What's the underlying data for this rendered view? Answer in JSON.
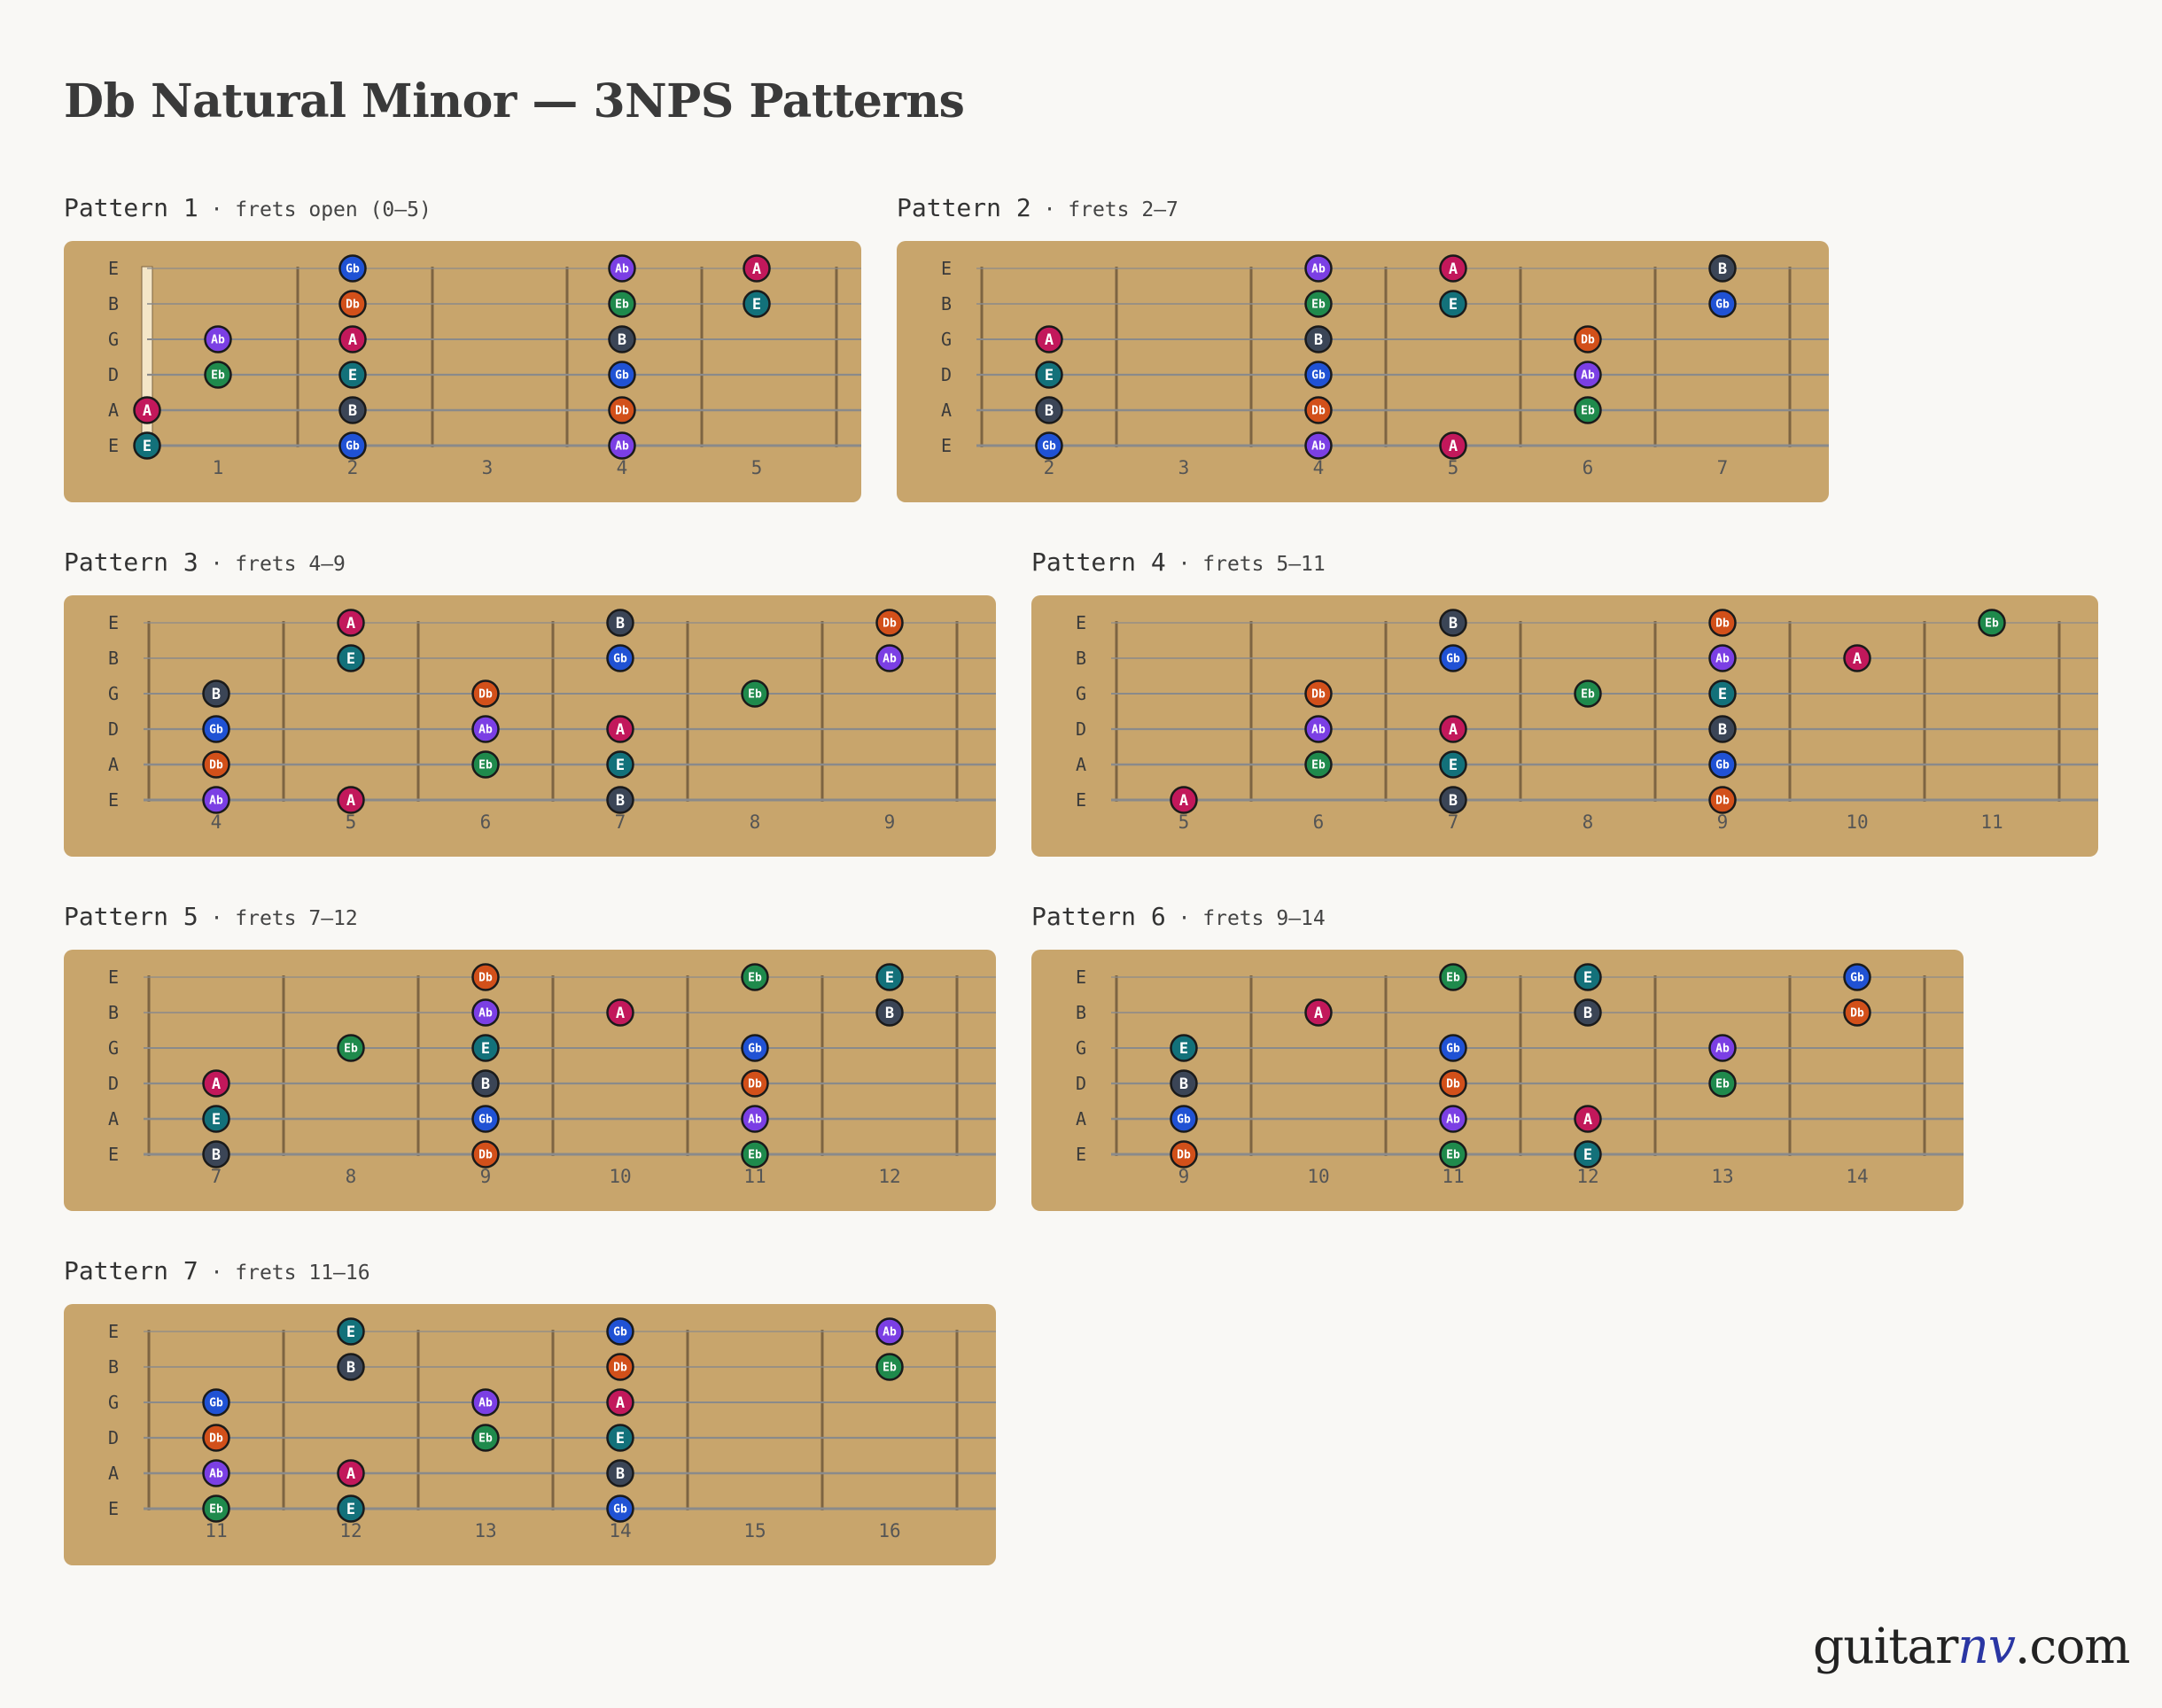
{
  "title": "Db Natural Minor — 3NPS Patterns",
  "brand": {
    "part1": "guitar",
    "part2": "nv",
    "part3": ".com"
  },
  "strings": [
    "E",
    "B",
    "G",
    "D",
    "A",
    "E"
  ],
  "colors": {
    "board": "#c8a56c",
    "fret": "#7d6442",
    "string": "#8a8a8a",
    "nut": "#f4e6c8",
    "note_outline": "#1a1a1a",
    "notes": {
      "A": "#c2185b",
      "Ab": "#7b3fe4",
      "B": "#3b4556",
      "Db": "#d2501a",
      "E": "#13717a",
      "Eb": "#1f8a4c",
      "Gb": "#2052d4"
    }
  },
  "patterns": [
    {
      "name": "Pattern 1",
      "range": "· frets open (0–5)",
      "open": true,
      "fret_labels": [
        "1",
        "2",
        "3",
        "4",
        "5"
      ],
      "notes": [
        {
          "s": 0,
          "f": 2,
          "n": "Gb"
        },
        {
          "s": 0,
          "f": 4,
          "n": "Ab"
        },
        {
          "s": 0,
          "f": 5,
          "n": "A"
        },
        {
          "s": 1,
          "f": 2,
          "n": "Db"
        },
        {
          "s": 1,
          "f": 4,
          "n": "Eb"
        },
        {
          "s": 1,
          "f": 5,
          "n": "E"
        },
        {
          "s": 2,
          "f": 1,
          "n": "Ab"
        },
        {
          "s": 2,
          "f": 2,
          "n": "A"
        },
        {
          "s": 2,
          "f": 4,
          "n": "B"
        },
        {
          "s": 3,
          "f": 1,
          "n": "Eb"
        },
        {
          "s": 3,
          "f": 2,
          "n": "E"
        },
        {
          "s": 3,
          "f": 4,
          "n": "Gb"
        },
        {
          "s": 4,
          "f": 0,
          "n": "A"
        },
        {
          "s": 4,
          "f": 2,
          "n": "B"
        },
        {
          "s": 4,
          "f": 4,
          "n": "Db"
        },
        {
          "s": 5,
          "f": 0,
          "n": "E"
        },
        {
          "s": 5,
          "f": 2,
          "n": "Gb"
        },
        {
          "s": 5,
          "f": 4,
          "n": "Ab"
        }
      ]
    },
    {
      "name": "Pattern 2",
      "range": "· frets 2–7",
      "open": false,
      "fret_labels": [
        "2",
        "3",
        "4",
        "5",
        "6",
        "7"
      ],
      "notes": [
        {
          "s": 0,
          "f": 4,
          "n": "Ab"
        },
        {
          "s": 0,
          "f": 5,
          "n": "A"
        },
        {
          "s": 0,
          "f": 7,
          "n": "B"
        },
        {
          "s": 1,
          "f": 4,
          "n": "Eb"
        },
        {
          "s": 1,
          "f": 5,
          "n": "E"
        },
        {
          "s": 1,
          "f": 7,
          "n": "Gb"
        },
        {
          "s": 2,
          "f": 2,
          "n": "A"
        },
        {
          "s": 2,
          "f": 4,
          "n": "B"
        },
        {
          "s": 2,
          "f": 6,
          "n": "Db"
        },
        {
          "s": 3,
          "f": 2,
          "n": "E"
        },
        {
          "s": 3,
          "f": 4,
          "n": "Gb"
        },
        {
          "s": 3,
          "f": 6,
          "n": "Ab"
        },
        {
          "s": 4,
          "f": 2,
          "n": "B"
        },
        {
          "s": 4,
          "f": 4,
          "n": "Db"
        },
        {
          "s": 4,
          "f": 6,
          "n": "Eb"
        },
        {
          "s": 5,
          "f": 2,
          "n": "Gb"
        },
        {
          "s": 5,
          "f": 4,
          "n": "Ab"
        },
        {
          "s": 5,
          "f": 5,
          "n": "A"
        }
      ]
    },
    {
      "name": "Pattern 3",
      "range": "· frets 4–9",
      "open": false,
      "fret_labels": [
        "4",
        "5",
        "6",
        "7",
        "8",
        "9"
      ],
      "notes": [
        {
          "s": 0,
          "f": 5,
          "n": "A"
        },
        {
          "s": 0,
          "f": 7,
          "n": "B"
        },
        {
          "s": 0,
          "f": 9,
          "n": "Db"
        },
        {
          "s": 1,
          "f": 5,
          "n": "E"
        },
        {
          "s": 1,
          "f": 7,
          "n": "Gb"
        },
        {
          "s": 1,
          "f": 9,
          "n": "Ab"
        },
        {
          "s": 2,
          "f": 4,
          "n": "B"
        },
        {
          "s": 2,
          "f": 6,
          "n": "Db"
        },
        {
          "s": 2,
          "f": 8,
          "n": "Eb"
        },
        {
          "s": 3,
          "f": 4,
          "n": "Gb"
        },
        {
          "s": 3,
          "f": 6,
          "n": "Ab"
        },
        {
          "s": 3,
          "f": 7,
          "n": "A"
        },
        {
          "s": 4,
          "f": 4,
          "n": "Db"
        },
        {
          "s": 4,
          "f": 6,
          "n": "Eb"
        },
        {
          "s": 4,
          "f": 7,
          "n": "E"
        },
        {
          "s": 5,
          "f": 4,
          "n": "Ab"
        },
        {
          "s": 5,
          "f": 5,
          "n": "A"
        },
        {
          "s": 5,
          "f": 7,
          "n": "B"
        }
      ]
    },
    {
      "name": "Pattern 4",
      "range": "· frets 5–11",
      "open": false,
      "fret_labels": [
        "5",
        "6",
        "7",
        "8",
        "9",
        "10",
        "11"
      ],
      "notes": [
        {
          "s": 0,
          "f": 7,
          "n": "B"
        },
        {
          "s": 0,
          "f": 9,
          "n": "Db"
        },
        {
          "s": 0,
          "f": 11,
          "n": "Eb"
        },
        {
          "s": 1,
          "f": 7,
          "n": "Gb"
        },
        {
          "s": 1,
          "f": 9,
          "n": "Ab"
        },
        {
          "s": 1,
          "f": 10,
          "n": "A"
        },
        {
          "s": 2,
          "f": 6,
          "n": "Db"
        },
        {
          "s": 2,
          "f": 8,
          "n": "Eb"
        },
        {
          "s": 2,
          "f": 9,
          "n": "E"
        },
        {
          "s": 3,
          "f": 6,
          "n": "Ab"
        },
        {
          "s": 3,
          "f": 7,
          "n": "A"
        },
        {
          "s": 3,
          "f": 9,
          "n": "B"
        },
        {
          "s": 4,
          "f": 6,
          "n": "Eb"
        },
        {
          "s": 4,
          "f": 7,
          "n": "E"
        },
        {
          "s": 4,
          "f": 9,
          "n": "Gb"
        },
        {
          "s": 5,
          "f": 5,
          "n": "A"
        },
        {
          "s": 5,
          "f": 7,
          "n": "B"
        },
        {
          "s": 5,
          "f": 9,
          "n": "Db"
        }
      ]
    },
    {
      "name": "Pattern 5",
      "range": "· frets 7–12",
      "open": false,
      "fret_labels": [
        "7",
        "8",
        "9",
        "10",
        "11",
        "12"
      ],
      "notes": [
        {
          "s": 0,
          "f": 9,
          "n": "Db"
        },
        {
          "s": 0,
          "f": 11,
          "n": "Eb"
        },
        {
          "s": 0,
          "f": 12,
          "n": "E"
        },
        {
          "s": 1,
          "f": 9,
          "n": "Ab"
        },
        {
          "s": 1,
          "f": 10,
          "n": "A"
        },
        {
          "s": 1,
          "f": 12,
          "n": "B"
        },
        {
          "s": 2,
          "f": 8,
          "n": "Eb"
        },
        {
          "s": 2,
          "f": 9,
          "n": "E"
        },
        {
          "s": 2,
          "f": 11,
          "n": "Gb"
        },
        {
          "s": 3,
          "f": 7,
          "n": "A"
        },
        {
          "s": 3,
          "f": 9,
          "n": "B"
        },
        {
          "s": 3,
          "f": 11,
          "n": "Db"
        },
        {
          "s": 4,
          "f": 7,
          "n": "E"
        },
        {
          "s": 4,
          "f": 9,
          "n": "Gb"
        },
        {
          "s": 4,
          "f": 11,
          "n": "Ab"
        },
        {
          "s": 5,
          "f": 7,
          "n": "B"
        },
        {
          "s": 5,
          "f": 9,
          "n": "Db"
        },
        {
          "s": 5,
          "f": 11,
          "n": "Eb"
        }
      ]
    },
    {
      "name": "Pattern 6",
      "range": "· frets 9–14",
      "open": false,
      "fret_labels": [
        "9",
        "10",
        "11",
        "12",
        "13",
        "14"
      ],
      "notes": [
        {
          "s": 0,
          "f": 11,
          "n": "Eb"
        },
        {
          "s": 0,
          "f": 12,
          "n": "E"
        },
        {
          "s": 0,
          "f": 14,
          "n": "Gb"
        },
        {
          "s": 1,
          "f": 10,
          "n": "A"
        },
        {
          "s": 1,
          "f": 12,
          "n": "B"
        },
        {
          "s": 1,
          "f": 14,
          "n": "Db"
        },
        {
          "s": 2,
          "f": 9,
          "n": "E"
        },
        {
          "s": 2,
          "f": 11,
          "n": "Gb"
        },
        {
          "s": 2,
          "f": 13,
          "n": "Ab"
        },
        {
          "s": 3,
          "f": 9,
          "n": "B"
        },
        {
          "s": 3,
          "f": 11,
          "n": "Db"
        },
        {
          "s": 3,
          "f": 13,
          "n": "Eb"
        },
        {
          "s": 4,
          "f": 9,
          "n": "Gb"
        },
        {
          "s": 4,
          "f": 11,
          "n": "Ab"
        },
        {
          "s": 4,
          "f": 12,
          "n": "A"
        },
        {
          "s": 5,
          "f": 9,
          "n": "Db"
        },
        {
          "s": 5,
          "f": 11,
          "n": "Eb"
        },
        {
          "s": 5,
          "f": 12,
          "n": "E"
        }
      ]
    },
    {
      "name": "Pattern 7",
      "range": "· frets 11–16",
      "open": false,
      "fret_labels": [
        "11",
        "12",
        "13",
        "14",
        "15",
        "16"
      ],
      "notes": [
        {
          "s": 0,
          "f": 12,
          "n": "E"
        },
        {
          "s": 0,
          "f": 14,
          "n": "Gb"
        },
        {
          "s": 0,
          "f": 16,
          "n": "Ab"
        },
        {
          "s": 1,
          "f": 12,
          "n": "B"
        },
        {
          "s": 1,
          "f": 14,
          "n": "Db"
        },
        {
          "s": 1,
          "f": 16,
          "n": "Eb"
        },
        {
          "s": 2,
          "f": 11,
          "n": "Gb"
        },
        {
          "s": 2,
          "f": 13,
          "n": "Ab"
        },
        {
          "s": 2,
          "f": 14,
          "n": "A"
        },
        {
          "s": 3,
          "f": 11,
          "n": "Db"
        },
        {
          "s": 3,
          "f": 13,
          "n": "Eb"
        },
        {
          "s": 3,
          "f": 14,
          "n": "E"
        },
        {
          "s": 4,
          "f": 11,
          "n": "Ab"
        },
        {
          "s": 4,
          "f": 12,
          "n": "A"
        },
        {
          "s": 4,
          "f": 14,
          "n": "B"
        },
        {
          "s": 5,
          "f": 11,
          "n": "Eb"
        },
        {
          "s": 5,
          "f": 12,
          "n": "E"
        },
        {
          "s": 5,
          "f": 14,
          "n": "Gb"
        }
      ]
    }
  ]
}
